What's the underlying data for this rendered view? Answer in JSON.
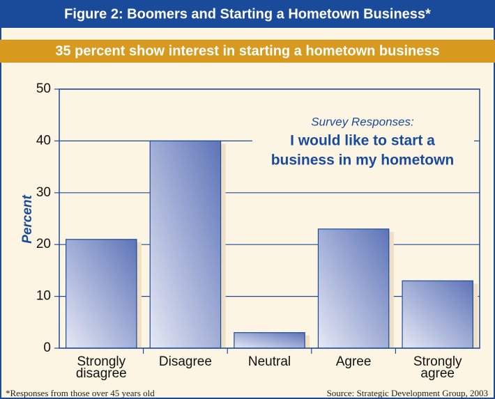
{
  "chart_data": {
    "type": "bar",
    "title": "Figure 2: Boomers and Starting a Hometown Business*",
    "subtitle": "35 percent show interest in starting a hometown business",
    "ylabel": "Percent",
    "annotation": {
      "heading": "Survey Responses:",
      "lines": [
        "I would like to start a",
        "business in my hometown"
      ]
    },
    "categories": [
      "Strongly disagree",
      "Disagree",
      "Neutral",
      "Agree",
      "Strongly agree"
    ],
    "values": [
      21,
      40,
      3,
      23,
      13
    ],
    "color": "#5d74b8",
    "ylim": [
      0,
      50
    ],
    "yticks": [
      0,
      10,
      20,
      30,
      40,
      50
    ],
    "grid": true,
    "footnote": "*Responses from those over 45 years old",
    "source": "Source: Strategic Development Group, 2003"
  }
}
